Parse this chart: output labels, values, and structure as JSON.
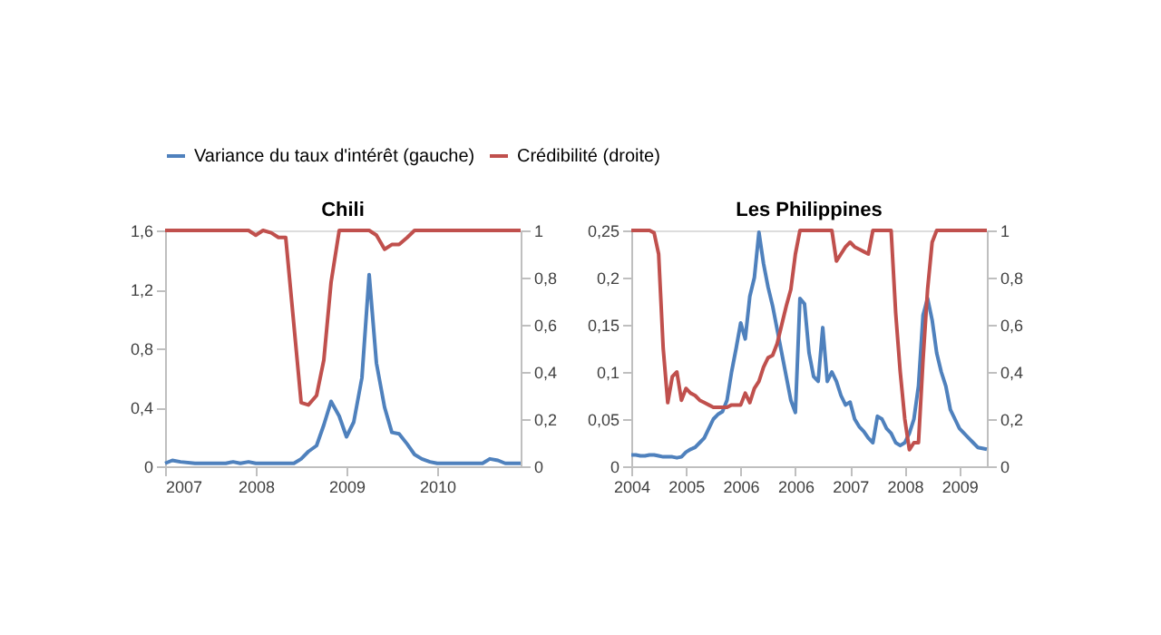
{
  "chart_data": [
    {
      "type": "line",
      "title": "Chili",
      "legend": "top",
      "grid": false,
      "marker": "none",
      "line_style": "solid",
      "xlim": [
        2007,
        2010.92
      ],
      "xticks": [
        2007,
        2008,
        2009,
        2010
      ],
      "ylim": [
        0,
        1.6
      ],
      "yticks": [
        {
          "value": 0,
          "label": "0"
        },
        {
          "value": 0.4,
          "label": "0,4"
        },
        {
          "value": 0.8,
          "label": "0,8"
        },
        {
          "value": 1.2,
          "label": "1,2"
        },
        {
          "value": 1.6,
          "label": "1,6"
        }
      ],
      "y2lim": [
        0,
        1
      ],
      "y2ticks": [
        {
          "value": 0,
          "label": "0"
        },
        {
          "value": 0.2,
          "label": "0,2"
        },
        {
          "value": 0.4,
          "label": "0,4"
        },
        {
          "value": 0.6,
          "label": "0,6"
        },
        {
          "value": 0.8,
          "label": "0,8"
        },
        {
          "value": 1,
          "label": "1"
        }
      ],
      "series": [
        {
          "name": "Variance du taux d'intérêt (gauche)",
          "color": "#4f81bd",
          "x": [
            2007,
            2007.08,
            2007.17,
            2007.33,
            2007.5,
            2007.67,
            2007.75,
            2007.83,
            2007.92,
            2008,
            2008.17,
            2008.33,
            2008.42,
            2008.5,
            2008.58,
            2008.67,
            2008.75,
            2008.83,
            2008.92,
            2009,
            2009.08,
            2009.17,
            2009.25,
            2009.33,
            2009.42,
            2009.5,
            2009.58,
            2009.67,
            2009.75,
            2009.83,
            2009.92,
            2010,
            2010.17,
            2010.33,
            2010.5,
            2010.58,
            2010.67,
            2010.75,
            2010.92
          ],
          "values": [
            0.02,
            0.04,
            0.03,
            0.02,
            0.02,
            0.02,
            0.03,
            0.02,
            0.03,
            0.02,
            0.02,
            0.02,
            0.02,
            0.05,
            0.1,
            0.14,
            0.28,
            0.44,
            0.34,
            0.2,
            0.3,
            0.6,
            1.3,
            0.7,
            0.4,
            0.23,
            0.22,
            0.15,
            0.08,
            0.05,
            0.03,
            0.02,
            0.02,
            0.02,
            0.02,
            0.05,
            0.04,
            0.02,
            0.02
          ]
        },
        {
          "name": "Crédibilité (droite)",
          "color": "#c0504d",
          "axis": "y2",
          "x": [
            2007,
            2007.92,
            2008,
            2008.08,
            2008.17,
            2008.25,
            2008.33,
            2008.42,
            2008.5,
            2008.58,
            2008.67,
            2008.75,
            2008.83,
            2008.92,
            2009.25,
            2009.33,
            2009.42,
            2009.5,
            2009.58,
            2009.67,
            2009.75,
            2010.92
          ],
          "values": [
            1,
            1,
            0.98,
            1,
            0.99,
            0.97,
            0.97,
            0.6,
            0.27,
            0.26,
            0.3,
            0.45,
            0.78,
            1,
            1,
            0.98,
            0.92,
            0.94,
            0.94,
            0.97,
            1,
            1
          ]
        }
      ]
    },
    {
      "type": "line",
      "title": "Les Philippines",
      "legend": "top",
      "grid": false,
      "marker": "none",
      "line_style": "solid",
      "categories": [
        "2004",
        null,
        null,
        null,
        null,
        null,
        null,
        null,
        null,
        null,
        null,
        null,
        "2005",
        null,
        null,
        null,
        null,
        null,
        null,
        null,
        null,
        null,
        null,
        null,
        "2006",
        null,
        null,
        null,
        null,
        null,
        null,
        null,
        null,
        null,
        null,
        null,
        "2006",
        null,
        null,
        null,
        null,
        null,
        null,
        null,
        null,
        null,
        null,
        null,
        "2007",
        null,
        null,
        null,
        null,
        null,
        null,
        null,
        null,
        null,
        null,
        null,
        "2008",
        null,
        null,
        null,
        null,
        null,
        null,
        null,
        null,
        null,
        null,
        null,
        "2009",
        null,
        null,
        null,
        null,
        null,
        null
      ],
      "ylim": [
        0,
        0.25
      ],
      "yticks": [
        {
          "value": 0,
          "label": "0"
        },
        {
          "value": 0.05,
          "label": "0,05"
        },
        {
          "value": 0.1,
          "label": "0,1"
        },
        {
          "value": 0.15,
          "label": "0,15"
        },
        {
          "value": 0.2,
          "label": "0,2"
        },
        {
          "value": 0.25,
          "label": "0,25"
        }
      ],
      "y2lim": [
        0,
        1
      ],
      "y2ticks": [
        {
          "value": 0,
          "label": "0"
        },
        {
          "value": 0.2,
          "label": "0,2"
        },
        {
          "value": 0.4,
          "label": "0,4"
        },
        {
          "value": 0.6,
          "label": "0,6"
        },
        {
          "value": 0.8,
          "label": "0,8"
        },
        {
          "value": 1,
          "label": "1"
        }
      ],
      "series": [
        {
          "name": "Variance du taux d'intérêt (gauche)",
          "color": "#4f81bd",
          "values": [
            0.012,
            0.012,
            0.011,
            0.011,
            0.012,
            0.012,
            0.011,
            0.01,
            0.01,
            0.01,
            0.009,
            0.01,
            0.015,
            0.018,
            0.02,
            0.025,
            0.03,
            0.04,
            0.05,
            0.055,
            0.058,
            0.07,
            0.1,
            0.125,
            0.152,
            0.135,
            0.18,
            0.2,
            0.248,
            0.215,
            0.19,
            0.17,
            0.145,
            0.12,
            0.095,
            0.07,
            0.057,
            0.178,
            0.172,
            0.12,
            0.095,
            0.09,
            0.147,
            0.09,
            0.1,
            0.09,
            0.075,
            0.065,
            0.068,
            0.05,
            0.042,
            0.037,
            0.03,
            0.025,
            0.053,
            0.05,
            0.04,
            0.035,
            0.025,
            0.022,
            0.025,
            0.035,
            0.05,
            0.085,
            0.16,
            0.178,
            0.155,
            0.12,
            0.1,
            0.085,
            0.06,
            0.05,
            0.04,
            0.035,
            0.03,
            0.025,
            0.02,
            0.019,
            0.018
          ]
        },
        {
          "name": "Crédibilité (droite)",
          "color": "#c0504d",
          "axis": "y2",
          "values": [
            1,
            1,
            1,
            1,
            1,
            0.99,
            0.9,
            0.5,
            0.27,
            0.38,
            0.4,
            0.28,
            0.33,
            0.31,
            0.3,
            0.28,
            0.27,
            0.26,
            0.25,
            0.25,
            0.25,
            0.25,
            0.26,
            0.26,
            0.26,
            0.31,
            0.27,
            0.33,
            0.36,
            0.42,
            0.46,
            0.47,
            0.52,
            0.6,
            0.68,
            0.75,
            0.9,
            1,
            1,
            1,
            1,
            1,
            1,
            1,
            1,
            0.87,
            0.9,
            0.93,
            0.95,
            0.93,
            0.92,
            0.91,
            0.9,
            1,
            1,
            1,
            1,
            1,
            0.65,
            0.4,
            0.2,
            0.07,
            0.1,
            0.1,
            0.45,
            0.75,
            0.95,
            1,
            1,
            1,
            1,
            1,
            1,
            1,
            1,
            1,
            1,
            1,
            1
          ]
        }
      ]
    }
  ]
}
